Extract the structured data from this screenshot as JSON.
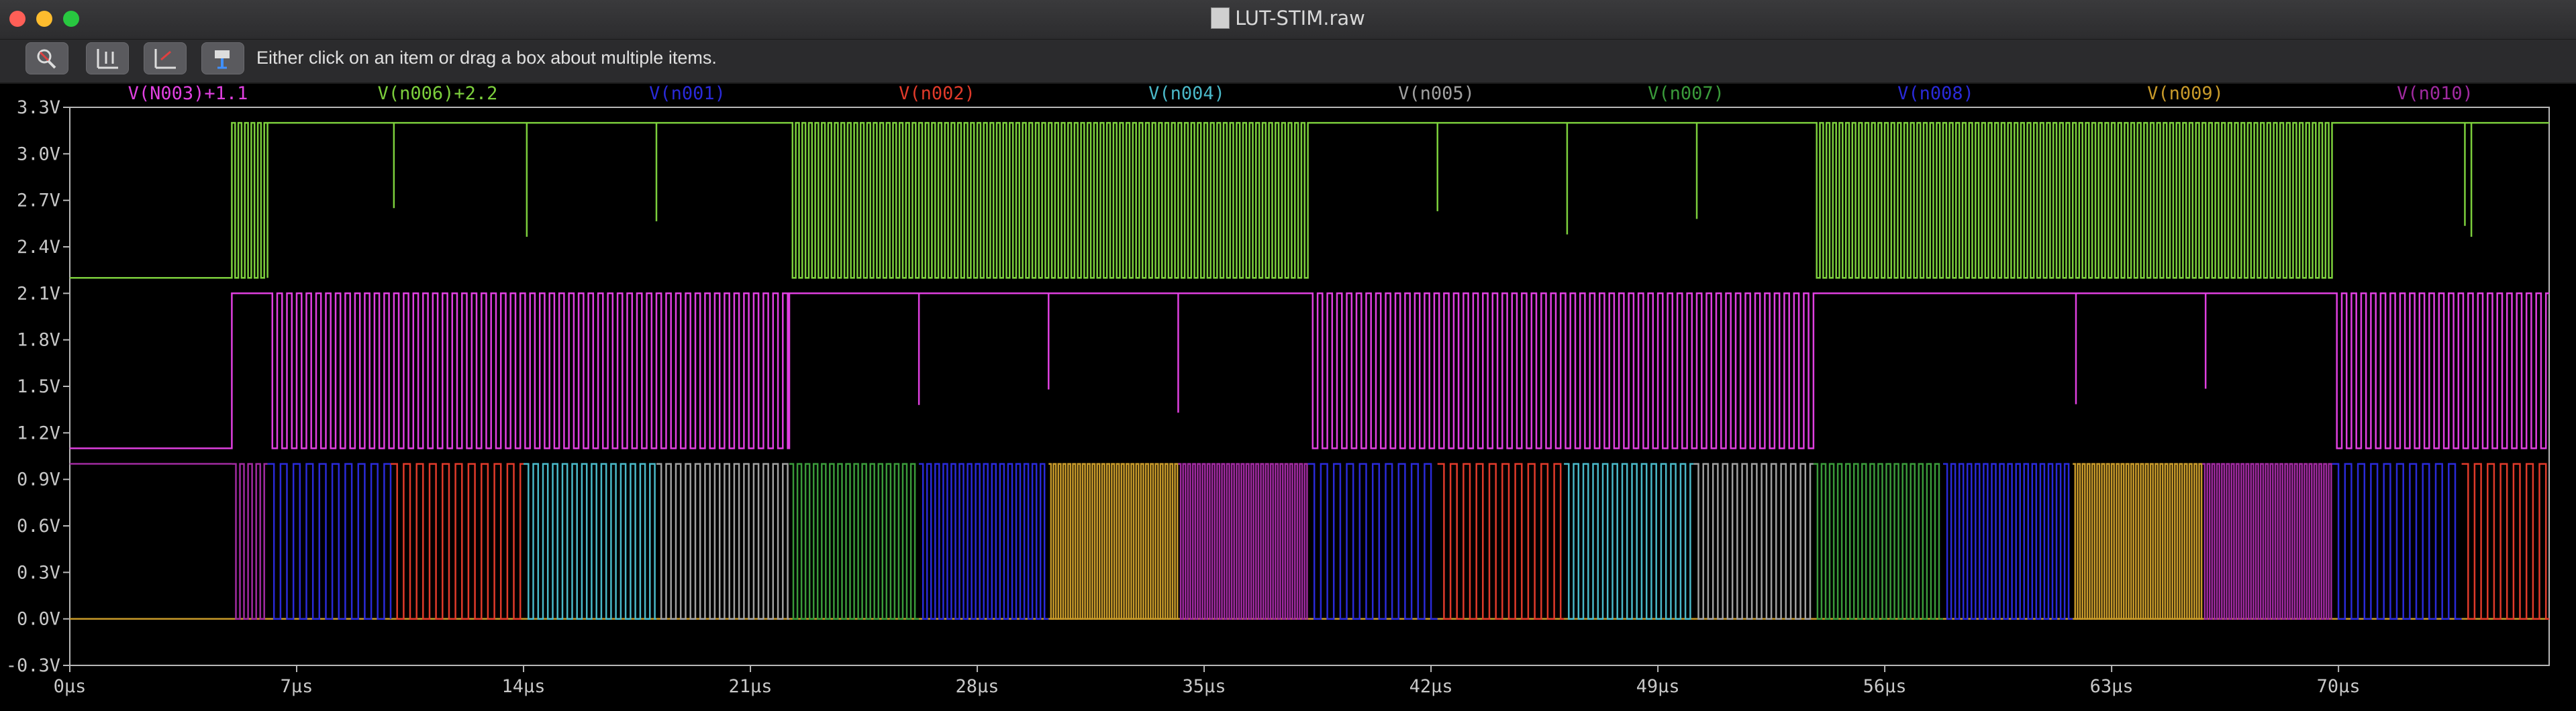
{
  "window": {
    "title": "LUT-STIM.raw"
  },
  "toolbar": {
    "status_text": "Either click on an item or drag a box about multiple items.",
    "buttons": [
      {
        "icon": "zoom-cancel-icon"
      },
      {
        "icon": "autorange-icon"
      },
      {
        "icon": "undo-zoom-icon"
      },
      {
        "icon": "pan-icon"
      }
    ]
  },
  "chart_data": {
    "type": "line",
    "title": "",
    "xlabel": "",
    "ylabel": "",
    "xlim": [
      0,
      76.5
    ],
    "ylim": [
      -0.3,
      3.3
    ],
    "x_ticks": [
      "0µs",
      "7µs",
      "14µs",
      "21µs",
      "28µs",
      "35µs",
      "42µs",
      "49µs",
      "56µs",
      "63µs",
      "70µs"
    ],
    "y_ticks": [
      "-0.3V",
      "0.0V",
      "0.3V",
      "0.6V",
      "0.9V",
      "1.2V",
      "1.5V",
      "1.8V",
      "2.1V",
      "2.4V",
      "2.7V",
      "3.0V",
      "3.3V"
    ],
    "x_unit": "µs",
    "y_unit": "V",
    "grid": false,
    "legend_position": "top",
    "series": [
      {
        "name": "V(N003)+1.1",
        "color": "#e040e0",
        "low": 1.1,
        "high": 2.1,
        "segments": [
          [
            5.0,
            6.1,
            "high"
          ],
          [
            6.1,
            22.2,
            0.3
          ],
          [
            22.2,
            38.2,
            "glitch"
          ],
          [
            38.2,
            53.8,
            0.3
          ],
          [
            53.8,
            69.8,
            "glitch"
          ],
          [
            69.8,
            76.5,
            0.3
          ]
        ]
      },
      {
        "name": "V(n006)+2.2",
        "color": "#7ccf3c",
        "low": 2.2,
        "high": 3.2,
        "segments": [
          [
            5.0,
            6.1,
            0.2
          ],
          [
            6.1,
            22.2,
            "glitch"
          ],
          [
            22.2,
            38.2,
            0.2
          ],
          [
            38.2,
            53.8,
            "glitch"
          ],
          [
            53.8,
            69.8,
            0.2
          ],
          [
            69.8,
            76.5,
            "glitch"
          ]
        ]
      },
      {
        "name": "V(n001)",
        "color": "#2a2ad8"
      },
      {
        "name": "V(n002)",
        "color": "#e03a2a"
      },
      {
        "name": "V(n004)",
        "color": "#4ab8c8"
      },
      {
        "name": "V(n005)",
        "color": "#a0a0a0"
      },
      {
        "name": "V(n007)",
        "color": "#3a9a3a"
      },
      {
        "name": "V(n008)",
        "color": "#2a2ad8"
      },
      {
        "name": "V(n009)",
        "color": "#c89a2a"
      },
      {
        "name": "V(n010)",
        "color": "#a02aa0"
      }
    ],
    "bottom_band": {
      "low": 0.0,
      "high": 1.0,
      "initial_high_until": 5.0,
      "segments": [
        {
          "series": "V(n010)",
          "from": 5.0,
          "to": 6.1,
          "period": 0.25
        },
        {
          "series": "V(n001)",
          "from": 6.1,
          "to": 9.9,
          "period": 0.4
        },
        {
          "series": "V(n002)",
          "from": 9.9,
          "to": 14.0,
          "period": 0.4
        },
        {
          "series": "V(n004)",
          "from": 14.0,
          "to": 18.1,
          "period": 0.3
        },
        {
          "series": "V(n005)",
          "from": 18.1,
          "to": 22.2,
          "period": 0.3
        },
        {
          "series": "V(n007)",
          "from": 22.2,
          "to": 26.2,
          "period": 0.25
        },
        {
          "series": "V(n008)",
          "from": 26.2,
          "to": 30.2,
          "period": 0.25
        },
        {
          "series": "V(n009)",
          "from": 30.2,
          "to": 34.2,
          "period": 0.15
        },
        {
          "series": "V(n010)",
          "from": 34.2,
          "to": 38.2,
          "period": 0.15
        },
        {
          "series": "V(n001)",
          "from": 38.2,
          "to": 42.2,
          "period": 0.4
        },
        {
          "series": "V(n002)",
          "from": 42.2,
          "to": 46.1,
          "period": 0.4
        },
        {
          "series": "V(n004)",
          "from": 46.1,
          "to": 50.1,
          "period": 0.3
        },
        {
          "series": "V(n005)",
          "from": 50.1,
          "to": 53.8,
          "period": 0.3
        },
        {
          "series": "V(n007)",
          "from": 53.8,
          "to": 57.8,
          "period": 0.25
        },
        {
          "series": "V(n008)",
          "from": 57.8,
          "to": 61.8,
          "period": 0.25
        },
        {
          "series": "V(n009)",
          "from": 61.8,
          "to": 65.8,
          "period": 0.15
        },
        {
          "series": "V(n010)",
          "from": 65.8,
          "to": 69.8,
          "period": 0.15
        },
        {
          "series": "V(n001)",
          "from": 69.8,
          "to": 73.8,
          "period": 0.4
        },
        {
          "series": "V(n002)",
          "from": 73.8,
          "to": 76.5,
          "period": 0.4
        }
      ]
    },
    "glitch_times": [
      10.0,
      14.1,
      18.1,
      26.2,
      30.2,
      34.2,
      42.2,
      46.2,
      50.2,
      61.9,
      65.9,
      73.9,
      74.1
    ]
  }
}
